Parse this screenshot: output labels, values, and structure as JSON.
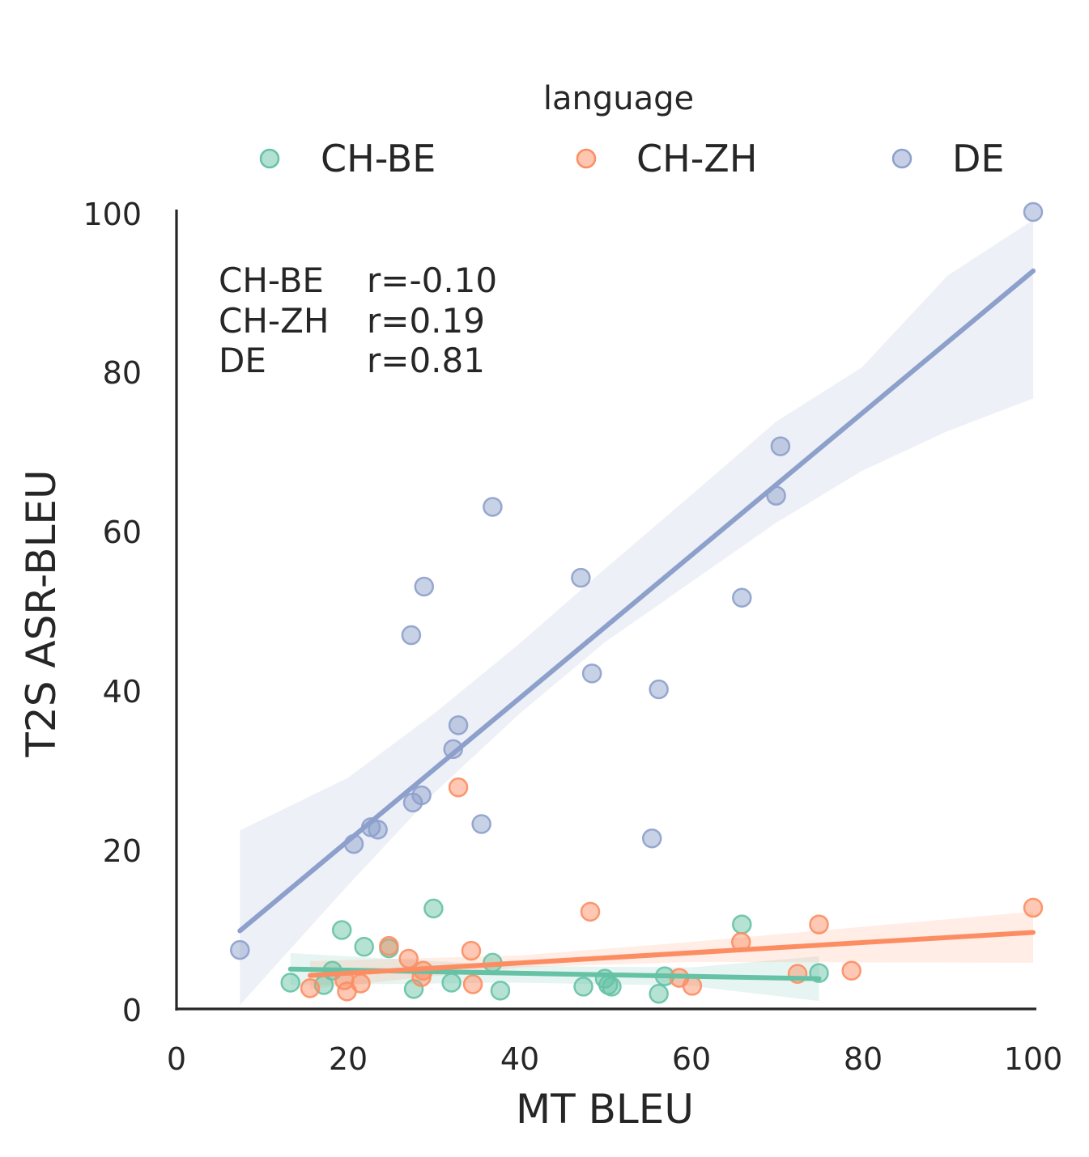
{
  "chart_data": {
    "type": "scatter",
    "xlabel": "MT BLEU",
    "ylabel": "T2S ASR-BLEU",
    "xlim": [
      0,
      100
    ],
    "ylim": [
      0,
      100
    ],
    "xticks": [
      "0",
      "20",
      "40",
      "60",
      "80",
      "100"
    ],
    "yticks": [
      "0",
      "20",
      "40",
      "60",
      "80",
      "100"
    ],
    "legend": {
      "title": "language",
      "placement": "top-center"
    },
    "annotations": [
      {
        "lang": "CH-BE",
        "stat": "r=-0.10"
      },
      {
        "lang": "CH-ZH",
        "stat": "r=0.19"
      },
      {
        "lang": "DE",
        "stat": "r=0.81"
      }
    ],
    "series": [
      {
        "name": "CH-BE",
        "color": "#66c2a5",
        "points": [
          [
            13.3,
            3.3
          ],
          [
            17.2,
            3.0
          ],
          [
            18.2,
            4.8
          ],
          [
            19.3,
            9.9
          ],
          [
            21.9,
            7.8
          ],
          [
            24.8,
            7.6
          ],
          [
            27.7,
            2.5
          ],
          [
            30.0,
            12.6
          ],
          [
            32.1,
            3.3
          ],
          [
            36.9,
            5.8
          ],
          [
            37.8,
            2.3
          ],
          [
            47.5,
            2.8
          ],
          [
            50.0,
            3.8
          ],
          [
            50.4,
            3.0
          ],
          [
            50.8,
            2.8
          ],
          [
            56.3,
            1.9
          ],
          [
            57.0,
            4.1
          ],
          [
            66.0,
            10.6
          ],
          [
            75.0,
            4.5
          ]
        ],
        "fit": {
          "x": [
            13.3,
            75.0
          ],
          "y": [
            5.0,
            3.8
          ]
        },
        "ci_upper": [
          [
            13.3,
            7.0
          ],
          [
            40.0,
            5.4
          ],
          [
            60.0,
            5.2
          ],
          [
            75.0,
            6.6
          ]
        ],
        "ci_lower": [
          [
            13.3,
            3.0
          ],
          [
            40.0,
            3.3
          ],
          [
            60.0,
            2.9
          ],
          [
            75.0,
            1.0
          ]
        ]
      },
      {
        "name": "CH-ZH",
        "color": "#fc8d62",
        "points": [
          [
            15.6,
            2.6
          ],
          [
            19.6,
            3.6
          ],
          [
            19.9,
            2.2
          ],
          [
            21.5,
            3.2
          ],
          [
            24.8,
            7.9
          ],
          [
            27.1,
            6.3
          ],
          [
            28.6,
            4.0
          ],
          [
            28.8,
            4.8
          ],
          [
            32.9,
            27.8
          ],
          [
            34.4,
            7.3
          ],
          [
            34.6,
            3.1
          ],
          [
            48.3,
            12.2
          ],
          [
            58.7,
            3.9
          ],
          [
            60.2,
            2.9
          ],
          [
            65.9,
            8.4
          ],
          [
            72.5,
            4.4
          ],
          [
            75.0,
            10.6
          ],
          [
            78.8,
            4.8
          ],
          [
            100.0,
            12.7
          ]
        ],
        "fit": {
          "x": [
            15.6,
            100.0
          ],
          "y": [
            4.2,
            9.6
          ]
        },
        "ci_upper": [
          [
            15.6,
            6.0
          ],
          [
            40.0,
            6.7
          ],
          [
            60.0,
            8.4
          ],
          [
            100.0,
            12.2
          ]
        ],
        "ci_lower": [
          [
            15.6,
            2.5
          ],
          [
            40.0,
            5.2
          ],
          [
            60.0,
            5.9
          ],
          [
            100.0,
            5.8
          ]
        ]
      },
      {
        "name": "DE",
        "color": "#8da0cb",
        "points": [
          [
            7.4,
            7.4
          ],
          [
            20.7,
            20.7
          ],
          [
            22.7,
            22.8
          ],
          [
            23.5,
            22.5
          ],
          [
            27.4,
            46.9
          ],
          [
            27.6,
            25.9
          ],
          [
            28.6,
            26.8
          ],
          [
            28.9,
            53.0
          ],
          [
            32.3,
            32.6
          ],
          [
            32.9,
            35.6
          ],
          [
            35.6,
            23.2
          ],
          [
            36.9,
            63.0
          ],
          [
            47.2,
            54.1
          ],
          [
            48.5,
            42.1
          ],
          [
            55.5,
            21.4
          ],
          [
            56.3,
            40.1
          ],
          [
            66.0,
            51.6
          ],
          [
            70.0,
            64.4
          ],
          [
            70.5,
            70.6
          ],
          [
            100.0,
            100.0
          ]
        ],
        "fit": {
          "x": [
            7.4,
            100.0
          ],
          "y": [
            9.8,
            92.6
          ]
        },
        "ci_upper": [
          [
            7.4,
            22.4
          ],
          [
            20.0,
            29.0
          ],
          [
            30.0,
            37.0
          ],
          [
            40.0,
            45.8
          ],
          [
            50.0,
            55.2
          ],
          [
            60.0,
            64.4
          ],
          [
            70.0,
            73.7
          ],
          [
            80.0,
            80.5
          ],
          [
            90.0,
            92.0
          ],
          [
            100.0,
            99.0
          ]
        ],
        "ci_lower": [
          [
            7.4,
            0.5
          ],
          [
            20.0,
            15.5
          ],
          [
            30.0,
            27.0
          ],
          [
            40.0,
            37.0
          ],
          [
            50.0,
            46.0
          ],
          [
            60.0,
            53.5
          ],
          [
            70.0,
            61.0
          ],
          [
            80.0,
            67.5
          ],
          [
            90.0,
            72.5
          ],
          [
            100.0,
            76.6
          ]
        ]
      }
    ]
  }
}
